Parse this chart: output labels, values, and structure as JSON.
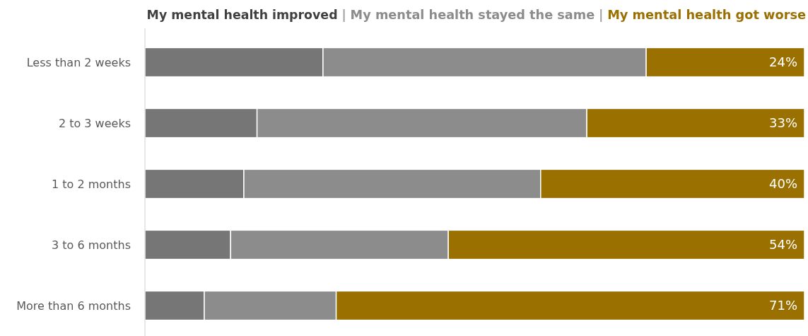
{
  "chart_data": {
    "type": "bar",
    "orientation": "horizontal",
    "stacked": true,
    "legend": "top",
    "categories": [
      "Less than 2 weeks",
      "2 to 3 weeks",
      "1 to 2 months",
      "3 to 6 months",
      "More than 6 months"
    ],
    "series": [
      {
        "name": "My mental health improved",
        "color": "#767676",
        "values": [
          27,
          17,
          15,
          13,
          9
        ]
      },
      {
        "name": "My mental health stayed the same",
        "color": "#8c8c8c",
        "values": [
          49,
          50,
          45,
          33,
          20
        ]
      },
      {
        "name": "My mental health got worse",
        "color": "#9a7000",
        "values": [
          24,
          33,
          40,
          54,
          71
        ],
        "value_labels": [
          "24%",
          "33%",
          "40%",
          "54%",
          "71%"
        ]
      }
    ]
  }
}
